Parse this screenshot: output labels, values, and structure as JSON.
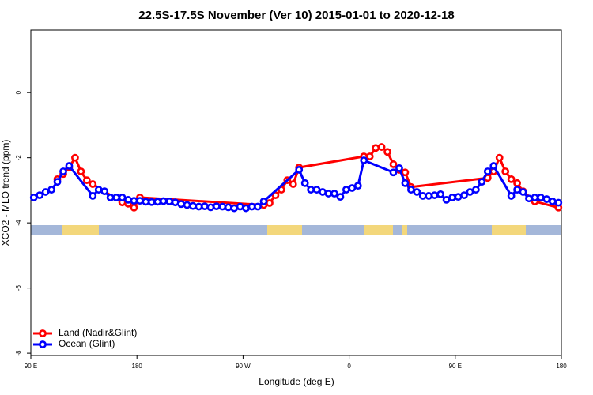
{
  "chart_data": {
    "type": "line",
    "title": "22.5S-17.5S November (Ver 10)   2015-01-01 to 2020-12-18",
    "x_label": "Longitude (deg E)",
    "y_label": "XCO2 - MLO trend (ppm)",
    "xlim": [
      90,
      540
    ],
    "ylim": [
      -8.07,
      1.92
    ],
    "xticks": [
      {
        "value": 90,
        "label": "90 E"
      },
      180,
      {
        "value": 270,
        "label": "90 W"
      },
      {
        "value": 360,
        "label": "0"
      },
      {
        "value": 450,
        "label": "90 E"
      },
      {
        "value": 540,
        "label": "180"
      }
    ],
    "yticks": [
      -8,
      -6,
      -4,
      -2,
      0
    ],
    "legend": "bottomleft",
    "series": [
      {
        "name": "Land (Nadir&Glint)",
        "color": "#ff0000",
        "x": [
          112.5,
          117.5,
          122.5,
          127.5,
          132.5,
          137.5,
          142.5,
          167.5,
          172.5,
          177.5,
          182.5,
          287.5,
          292.5,
          297.5,
          302.5,
          307.5,
          312.5,
          317.5,
          372.5,
          377.5,
          382.5,
          387.5,
          392.5,
          397.5,
          402.5,
          407.5,
          412.5,
          477.5,
          482.5,
          487.5,
          492.5,
          497.5,
          502.5,
          507.5,
          517.5,
          537.5
        ],
        "values": [
          -2.66,
          -2.5,
          -2.3,
          -2.0,
          -2.42,
          -2.69,
          -2.81,
          -3.37,
          -3.41,
          -3.53,
          -3.22,
          -3.45,
          -3.39,
          -3.15,
          -2.98,
          -2.69,
          -2.81,
          -2.3,
          -1.96,
          -1.96,
          -1.7,
          -1.67,
          -1.82,
          -2.2,
          -2.37,
          -2.45,
          -2.9,
          -2.62,
          -2.42,
          -2.0,
          -2.42,
          -2.66,
          -2.78,
          -3.03,
          -3.34,
          -3.53
        ]
      },
      {
        "name": "Ocean (Glint)",
        "color": "#0000ff",
        "x": [
          92.5,
          97.5,
          102.5,
          107.5,
          112.5,
          117.5,
          122.5,
          142.5,
          147.5,
          152.5,
          157.5,
          162.5,
          167.5,
          172.5,
          177.5,
          182.5,
          187.5,
          192.5,
          197.5,
          202.5,
          207.5,
          212.5,
          217.5,
          222.5,
          227.5,
          232.5,
          237.5,
          242.5,
          247.5,
          252.5,
          257.5,
          262.5,
          267.5,
          272.5,
          277.5,
          282.5,
          287.5,
          317.5,
          322.5,
          327.5,
          332.5,
          337.5,
          342.5,
          347.5,
          352.5,
          357.5,
          362.5,
          367.5,
          372.5,
          397.5,
          402.5,
          407.5,
          412.5,
          417.5,
          422.5,
          427.5,
          432.5,
          437.5,
          442.5,
          447.5,
          452.5,
          457.5,
          462.5,
          467.5,
          472.5,
          477.5,
          482.5,
          497.5,
          502.5,
          507.5,
          512.5,
          517.5,
          522.5,
          527.5,
          532.5,
          537.5
        ],
        "values": [
          -3.22,
          -3.15,
          -3.05,
          -2.98,
          -2.74,
          -2.42,
          -2.25,
          -3.17,
          -2.98,
          -3.03,
          -3.22,
          -3.22,
          -3.22,
          -3.29,
          -3.32,
          -3.32,
          -3.35,
          -3.36,
          -3.35,
          -3.33,
          -3.34,
          -3.37,
          -3.42,
          -3.45,
          -3.48,
          -3.5,
          -3.49,
          -3.52,
          -3.49,
          -3.5,
          -3.52,
          -3.55,
          -3.5,
          -3.55,
          -3.5,
          -3.5,
          -3.34,
          -2.37,
          -2.78,
          -2.98,
          -2.98,
          -3.05,
          -3.1,
          -3.1,
          -3.2,
          -2.98,
          -2.93,
          -2.86,
          -2.08,
          -2.45,
          -2.32,
          -2.78,
          -2.98,
          -3.05,
          -3.17,
          -3.17,
          -3.15,
          -3.12,
          -3.29,
          -3.22,
          -3.2,
          -3.15,
          -3.05,
          -2.98,
          -2.74,
          -2.42,
          -2.25,
          -3.17,
          -2.98,
          -3.05,
          -3.25,
          -3.22,
          -3.22,
          -3.27,
          -3.34,
          -3.38
        ]
      }
    ]
  }
}
